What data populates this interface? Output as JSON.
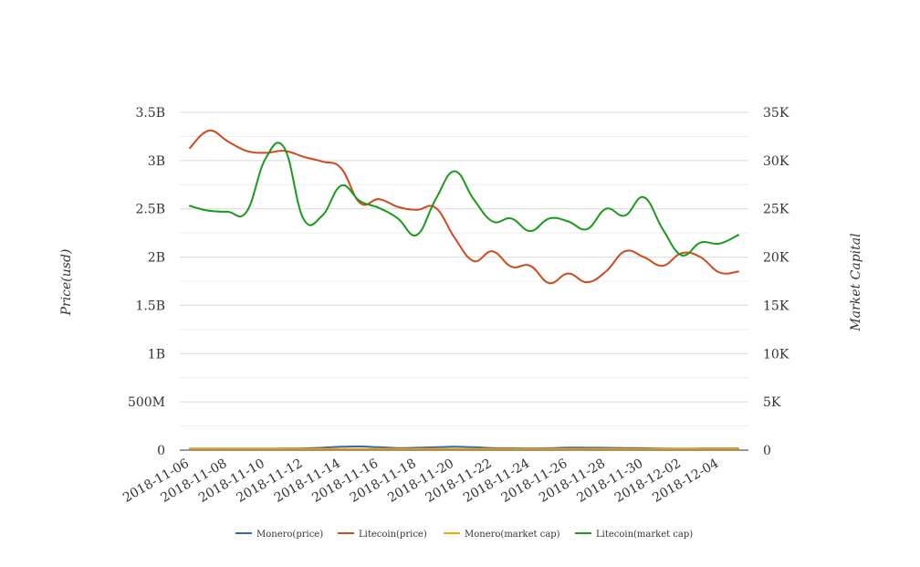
{
  "chart_data": {
    "type": "line",
    "title": "",
    "ylabel_left": "Price(usd)",
    "ylabel_right": "Market Capital",
    "ylim_left": [
      0,
      3500000000
    ],
    "ylim_right": [
      0,
      35000
    ],
    "left_ticks": [
      {
        "value": 0,
        "label": "0"
      },
      {
        "value": 500000000,
        "label": "500M"
      },
      {
        "value": 1000000000,
        "label": "1B"
      },
      {
        "value": 1500000000,
        "label": "1.5B"
      },
      {
        "value": 2000000000,
        "label": "2B"
      },
      {
        "value": 2500000000,
        "label": "2.5B"
      },
      {
        "value": 3000000000,
        "label": "3B"
      },
      {
        "value": 3500000000,
        "label": "3.5B"
      }
    ],
    "right_ticks": [
      {
        "value": 0,
        "label": "0"
      },
      {
        "value": 5000,
        "label": "5K"
      },
      {
        "value": 10000,
        "label": "10K"
      },
      {
        "value": 15000,
        "label": "15K"
      },
      {
        "value": 20000,
        "label": "20K"
      },
      {
        "value": 25000,
        "label": "25K"
      },
      {
        "value": 30000,
        "label": "30K"
      },
      {
        "value": 35000,
        "label": "35K"
      }
    ],
    "x": [
      "2018-11-06",
      "2018-11-07",
      "2018-11-08",
      "2018-11-09",
      "2018-11-10",
      "2018-11-11",
      "2018-11-12",
      "2018-11-13",
      "2018-11-14",
      "2018-11-15",
      "2018-11-16",
      "2018-11-17",
      "2018-11-18",
      "2018-11-19",
      "2018-11-20",
      "2018-11-21",
      "2018-11-22",
      "2018-11-23",
      "2018-11-24",
      "2018-11-25",
      "2018-11-26",
      "2018-11-27",
      "2018-11-28",
      "2018-11-29",
      "2018-11-30",
      "2018-12-01",
      "2018-12-02",
      "2018-12-03",
      "2018-12-04",
      "2018-12-05"
    ],
    "x_tick_labels": [
      "2018-11-06",
      "2018-11-08",
      "2018-11-10",
      "2018-11-12",
      "2018-11-14",
      "2018-11-16",
      "2018-11-18",
      "2018-11-20",
      "2018-11-22",
      "2018-11-24",
      "2018-11-26",
      "2018-11-28",
      "2018-11-30",
      "2018-12-02",
      "2018-12-04"
    ],
    "grid": true,
    "legend_position": "bottom-center",
    "series": [
      {
        "name": "Monero(price)",
        "axis": "left",
        "color": "#3366bb",
        "values": [
          15000000,
          15000000,
          15000000,
          15000000,
          15000000,
          16000000,
          18000000,
          25000000,
          35000000,
          38000000,
          30000000,
          22000000,
          25000000,
          30000000,
          35000000,
          30000000,
          22000000,
          20000000,
          18000000,
          20000000,
          26000000,
          25000000,
          24000000,
          22000000,
          20000000,
          16000000,
          15000000,
          16000000,
          17000000,
          16000000
        ]
      },
      {
        "name": "Litecoin(price)",
        "axis": "left",
        "color": "#d04a1e",
        "values": [
          3130000000,
          3310000000,
          3200000000,
          3100000000,
          3080000000,
          3100000000,
          3040000000,
          2990000000,
          2920000000,
          2560000000,
          2600000000,
          2520000000,
          2490000000,
          2510000000,
          2200000000,
          1960000000,
          2060000000,
          1900000000,
          1910000000,
          1730000000,
          1830000000,
          1740000000,
          1850000000,
          2060000000,
          2000000000,
          1910000000,
          2040000000,
          2000000000,
          1840000000,
          1850000000
        ]
      },
      {
        "name": "Monero(market cap)",
        "axis": "right",
        "color": "#f0a800",
        "values": [
          120,
          120,
          120,
          120,
          120,
          120,
          120,
          120,
          120,
          120,
          120,
          120,
          120,
          120,
          120,
          120,
          120,
          120,
          120,
          120,
          120,
          120,
          120,
          120,
          120,
          120,
          120,
          120,
          120,
          120
        ]
      },
      {
        "name": "Litecoin(market cap)",
        "axis": "right",
        "color": "#1a9a1a",
        "values": [
          25300,
          24800,
          24700,
          24700,
          30200,
          31300,
          24000,
          24300,
          27400,
          25800,
          25100,
          24000,
          22300,
          26000,
          28900,
          26000,
          23700,
          24000,
          22700,
          24000,
          23700,
          22900,
          25000,
          24300,
          26200,
          22900,
          20200,
          21500,
          21400,
          22300
        ]
      }
    ]
  }
}
